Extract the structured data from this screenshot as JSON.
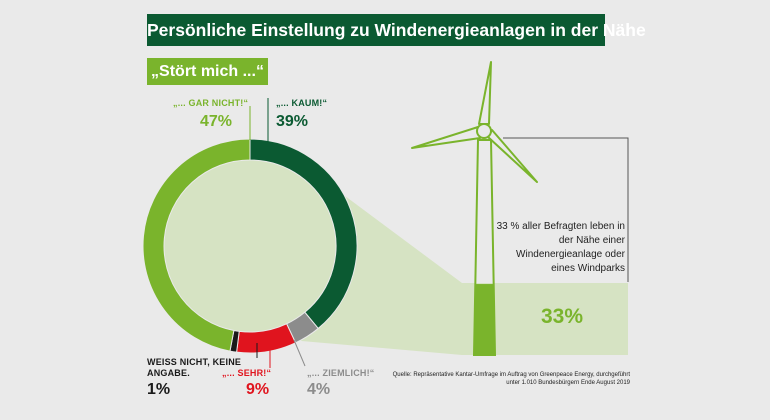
{
  "title": "Persönliche Einstellung zu Windenergieanlagen in der Nähe",
  "subtitle": "„Stört mich ...“",
  "note": "33 % aller Befragten leben in der Nähe einer Windenergieanlage oder eines Windparks",
  "source": "Quelle: Repräsentative Kantar-Umfrage im Auftrag von Greenpeace Energy, durchgeführt unter 1.010 Bundesbürgern Ende August 2019",
  "colors": {
    "dark_green": "#0b5a32",
    "light_green": "#7ab42c",
    "pale_green": "#d6e3c3",
    "red": "#e0141e",
    "gray": "#8c8c8c",
    "black": "#1a1a1a"
  },
  "chart_data": [
    {
      "type": "pie",
      "variant": "donut",
      "start_category": "„... KAUM!“",
      "direction": "clockwise",
      "categories": [
        "„... KAUM!“",
        "„... ZIEMLICH!“",
        "„... SEHR!“",
        "WEISS NICHT, KEINE ANGABE.",
        "„... GAR NICHT!“"
      ],
      "value_labels": [
        "39%",
        "4%",
        "9%",
        "1%",
        "47%"
      ],
      "values": [
        39,
        4,
        9,
        1,
        47
      ],
      "colors": [
        "#0b5a32",
        "#8c8c8c",
        "#e0141e",
        "#1a1a1a",
        "#7ab42c"
      ]
    },
    {
      "type": "bar",
      "value": 33,
      "value_label": "33%",
      "fill_color": "#7ab42c",
      "max": 100
    }
  ]
}
